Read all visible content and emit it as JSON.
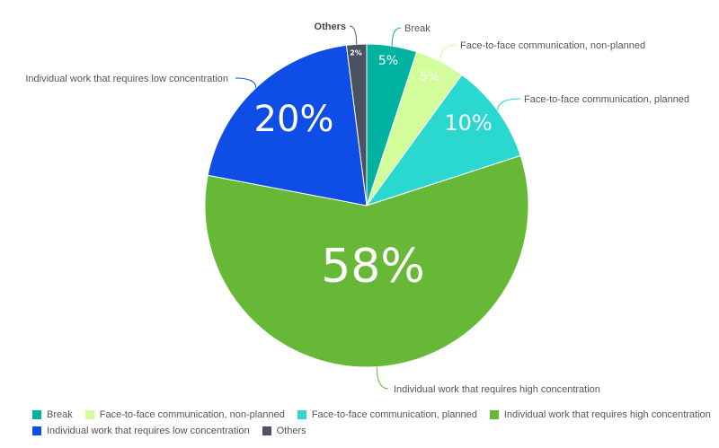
{
  "chart_data": {
    "type": "pie",
    "title": "",
    "slices": [
      {
        "label": "Break",
        "value": 5,
        "display": "5%",
        "color": "#00b3a1"
      },
      {
        "label": "Face-to-face communication, non-planned",
        "value": 5,
        "display": "5%",
        "color": "#d3fd9a"
      },
      {
        "label": "Face-to-face communication, planned",
        "value": 10,
        "display": "10%",
        "color": "#2ad8d0"
      },
      {
        "label": "Individual work that requires high concentration",
        "value": 58,
        "display": "58%",
        "color": "#68b837"
      },
      {
        "label": "Individual work that requires low concentration",
        "value": 20,
        "display": "20%",
        "color": "#0e4ee6"
      },
      {
        "label": "Others",
        "value": 2,
        "display": "2%",
        "color": "#4a5160"
      }
    ],
    "legend_position": "bottom-left"
  }
}
